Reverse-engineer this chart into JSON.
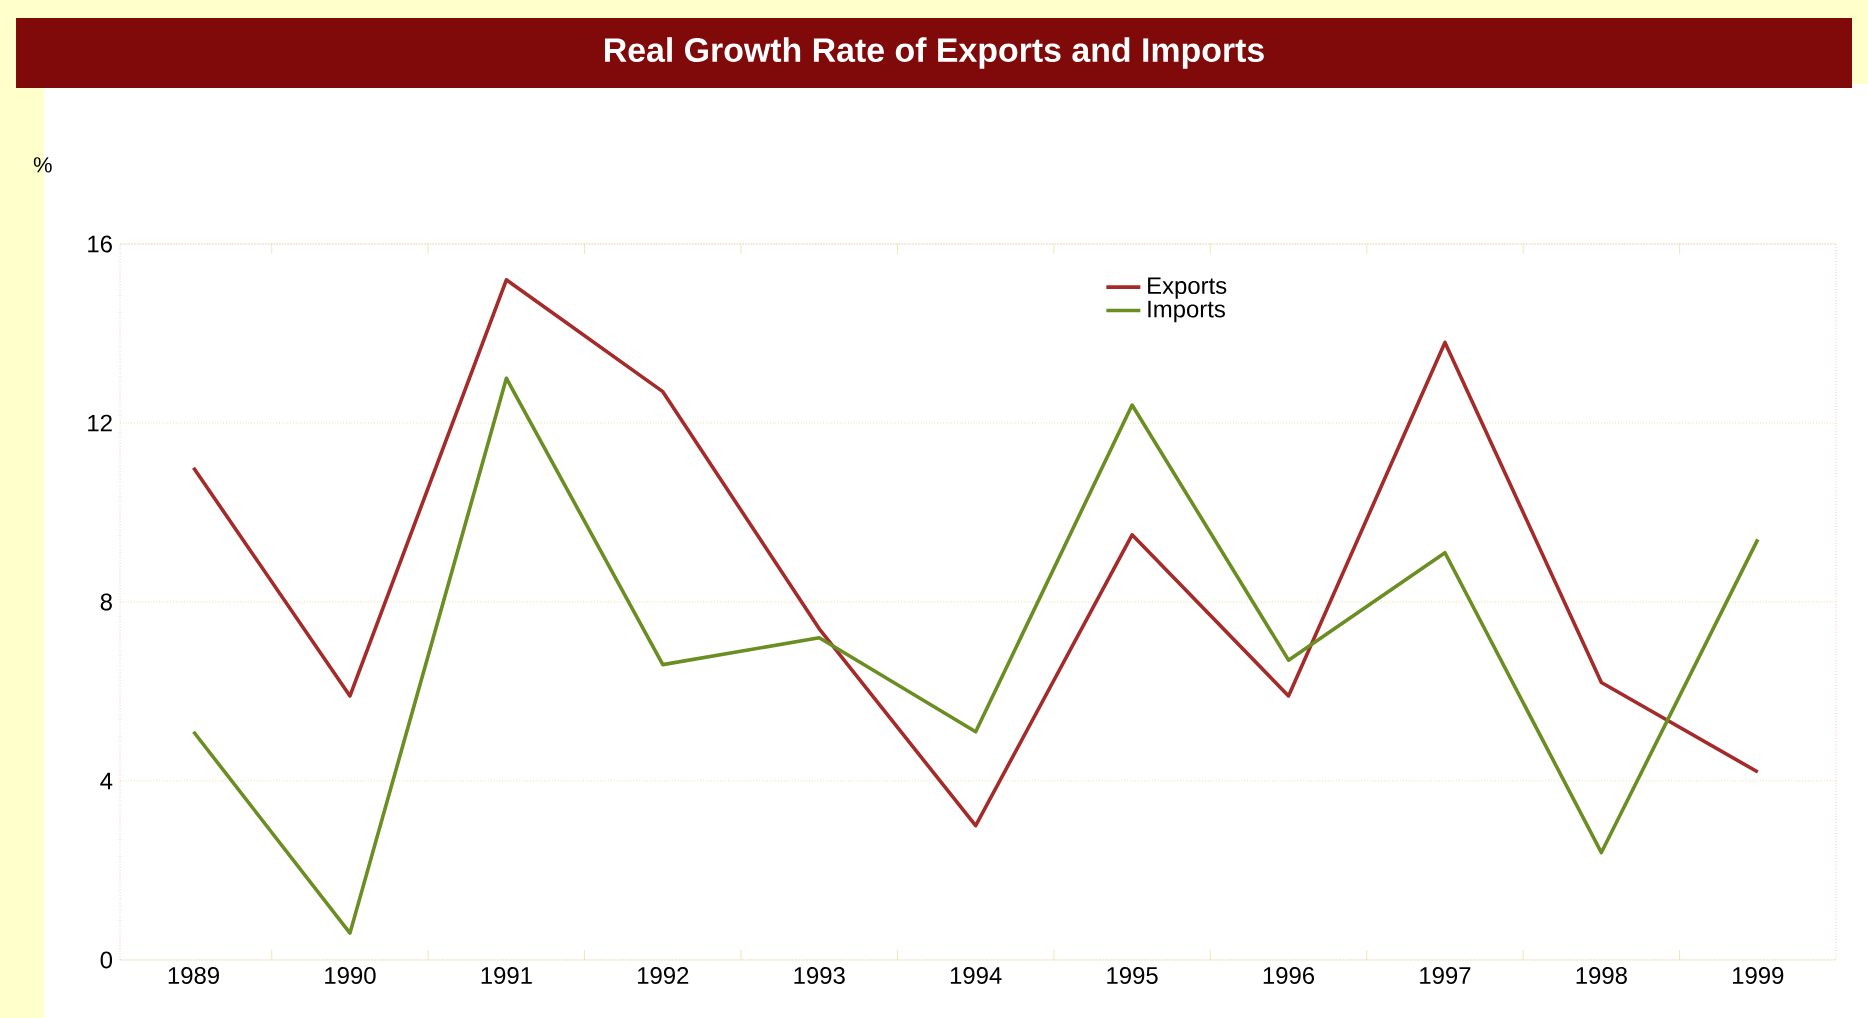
{
  "chart_data": {
    "type": "line",
    "title": "Real Growth Rate of Exports and Imports",
    "ylabel": "%",
    "categories": [
      "1989",
      "1990",
      "1991",
      "1992",
      "1993",
      "1994",
      "1995",
      "1996",
      "1997",
      "1998",
      "1999"
    ],
    "series": [
      {
        "name": "Exports",
        "color": "#a52a2a",
        "values": [
          11.0,
          5.9,
          15.2,
          12.7,
          7.4,
          3.0,
          9.5,
          5.9,
          13.8,
          6.2,
          4.2
        ]
      },
      {
        "name": "Imports",
        "color": "#6b8e23",
        "values": [
          5.1,
          0.6,
          13.0,
          6.6,
          7.2,
          5.1,
          12.4,
          6.7,
          9.1,
          2.4,
          9.4
        ]
      }
    ],
    "ylim": [
      0,
      16
    ],
    "yticks": [
      0,
      4,
      8,
      12,
      16
    ],
    "grid": "y",
    "legend": "top",
    "marker": "none",
    "line_style": "solid"
  }
}
